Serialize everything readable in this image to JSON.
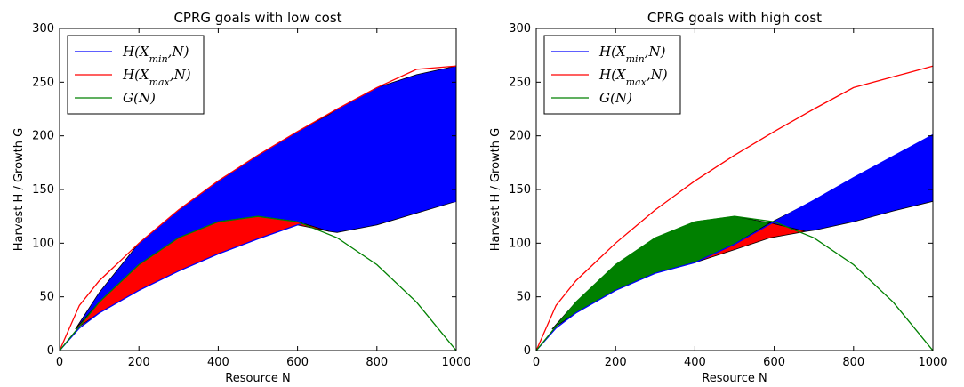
{
  "chart_data": [
    {
      "type": "line",
      "title": "CPRG goals with low cost",
      "xlabel": "Resource N",
      "ylabel": "Harvest H / Growth G",
      "xlim": [
        0,
        1000
      ],
      "ylim": [
        0,
        300
      ],
      "xticks": [
        "0",
        "200",
        "400",
        "600",
        "800",
        "1000"
      ],
      "yticks": [
        "0",
        "50",
        "100",
        "150",
        "200",
        "250",
        "300"
      ],
      "legend_position": "top-left",
      "series": [
        {
          "name": "H(Xmin,N)",
          "color": "#0000ff",
          "x": [
            0,
            50,
            100,
            200,
            300,
            400,
            500,
            600,
            700,
            800,
            900,
            1000
          ],
          "y": [
            0,
            21,
            35,
            56,
            74,
            90,
            104,
            117,
            127,
            131,
            135,
            139
          ]
        },
        {
          "name": "H(Xmax,N)",
          "color": "#ff0000",
          "x": [
            0,
            50,
            100,
            200,
            300,
            400,
            500,
            600,
            700,
            800,
            900,
            1000
          ],
          "y": [
            0,
            42,
            65,
            100,
            131,
            158,
            182,
            204,
            225,
            245,
            262,
            265
          ]
        },
        {
          "name": "G(N)",
          "color": "#008000",
          "x": [
            0,
            100,
            200,
            300,
            400,
            500,
            600,
            700,
            800,
            900,
            1000
          ],
          "y": [
            0,
            45,
            80,
            105,
            120,
            125,
            120,
            105,
            80,
            45,
            0
          ]
        }
      ],
      "regions": [
        {
          "color": "#0000ff",
          "x": [
            40,
            100,
            200,
            300,
            400,
            500,
            600,
            680,
            700,
            800,
            900,
            1000
          ],
          "lower": [
            20,
            45,
            80,
            105,
            120,
            125,
            120,
            111,
            110,
            117,
            128,
            139
          ],
          "upper": [
            20,
            54,
            100,
            131,
            158,
            182,
            204,
            220,
            225,
            245,
            257,
            265
          ]
        },
        {
          "color": "#ff0000",
          "x": [
            40,
            100,
            200,
            300,
            400,
            500,
            600,
            680
          ],
          "lower": [
            20,
            35,
            56,
            74,
            90,
            104,
            117,
            111
          ],
          "upper": [
            20,
            45,
            80,
            105,
            120,
            125,
            120,
            111
          ]
        }
      ]
    },
    {
      "type": "line",
      "title": "CPRG goals with high cost",
      "xlabel": "Resource N",
      "ylabel": "Harvest H / Growth G",
      "xlim": [
        0,
        1000
      ],
      "ylim": [
        0,
        300
      ],
      "xticks": [
        "0",
        "200",
        "400",
        "600",
        "800",
        "1000"
      ],
      "yticks": [
        "0",
        "50",
        "100",
        "150",
        "200",
        "250",
        "300"
      ],
      "legend_position": "top-left",
      "series": [
        {
          "name": "H(Xmin,N)",
          "color": "#0000ff",
          "x": [
            0,
            50,
            100,
            200,
            300,
            400,
            500,
            600,
            700,
            800,
            900,
            1000
          ],
          "y": [
            0,
            21,
            35,
            56,
            72,
            82,
            99,
            120,
            140,
            161,
            181,
            201
          ]
        },
        {
          "name": "H(Xmax,N)",
          "color": "#ff0000",
          "x": [
            0,
            50,
            100,
            200,
            300,
            400,
            500,
            600,
            700,
            800,
            900,
            1000
          ],
          "y": [
            0,
            42,
            65,
            100,
            131,
            158,
            182,
            204,
            225,
            245,
            255,
            265
          ]
        },
        {
          "name": "G(N)",
          "color": "#008000",
          "x": [
            0,
            100,
            200,
            300,
            400,
            500,
            600,
            700,
            800,
            900,
            1000
          ],
          "y": [
            0,
            45,
            80,
            105,
            120,
            125,
            120,
            105,
            80,
            45,
            0
          ]
        }
      ],
      "regions": [
        {
          "color": "#008000",
          "x": [
            40,
            100,
            200,
            300,
            400,
            500,
            590
          ],
          "lower": [
            20,
            35,
            56,
            72,
            82,
            99,
            119
          ],
          "upper": [
            20,
            45,
            80,
            105,
            120,
            125,
            119
          ]
        },
        {
          "color": "#ff0000",
          "x": [
            400,
            500,
            590,
            680
          ],
          "lower": [
            82,
            94,
            105,
            111
          ],
          "upper": [
            82,
            99,
            119,
            111
          ]
        },
        {
          "color": "#0000ff",
          "x": [
            590,
            680,
            700,
            800,
            900,
            1000
          ],
          "lower": [
            119,
            111,
            112,
            120,
            130,
            139
          ],
          "upper": [
            119,
            136,
            140,
            161,
            181,
            201
          ]
        }
      ]
    }
  ]
}
